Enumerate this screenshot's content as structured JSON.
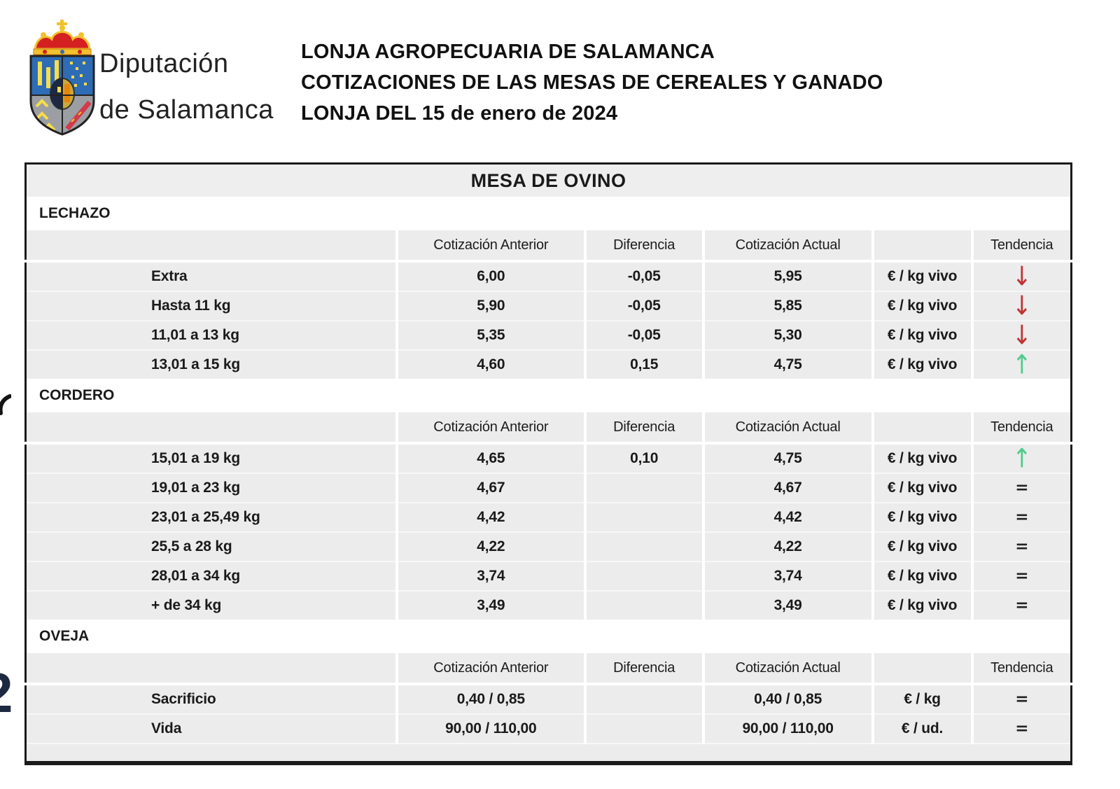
{
  "header": {
    "logo": {
      "name": "diputacion-de-salamanca-coat-of-arms",
      "org_line1": "Diputación",
      "org_line2": "de Salamanca",
      "colors": {
        "blue": "#2e6cb5",
        "gray": "#9b9fa3",
        "red": "#d42020",
        "gold": "#f2c12e"
      }
    },
    "title_lines": [
      "LONJA AGROPECUARIA DE SALAMANCA",
      "COTIZACIONES DE LAS MESAS DE CEREALES Y GANADO",
      "LONJA DEL 15 de enero de 2024"
    ]
  },
  "artifacts": {
    "clipped_left_edge_digit": "2"
  },
  "table": {
    "title": "MESA DE OVINO",
    "columns": [
      "",
      "Cotización Anterior",
      "Diferencia",
      "Cotización Actual",
      "",
      "Tendencia"
    ],
    "trend_symbols": {
      "down": "↓",
      "up": "↑",
      "equal": "="
    },
    "colors": {
      "trend_down": "#c03232",
      "trend_up": "#4ecb8d",
      "trend_equal": "#222222",
      "row_bg": "#ececec",
      "section_bg": "#ffffff",
      "border": "#1a1a1a"
    },
    "sections": [
      {
        "name": "LECHAZO",
        "rows": [
          {
            "label": "Extra",
            "anterior": "6,00",
            "diferencia": "-0,05",
            "actual": "5,95",
            "unit": "€ / kg vivo",
            "trend": "down"
          },
          {
            "label": "Hasta 11 kg",
            "anterior": "5,90",
            "diferencia": "-0,05",
            "actual": "5,85",
            "unit": "€ / kg vivo",
            "trend": "down"
          },
          {
            "label": "11,01 a 13 kg",
            "anterior": "5,35",
            "diferencia": "-0,05",
            "actual": "5,30",
            "unit": "€ / kg vivo",
            "trend": "down"
          },
          {
            "label": "13,01 a 15 kg",
            "anterior": "4,60",
            "diferencia": "0,15",
            "actual": "4,75",
            "unit": "€ / kg vivo",
            "trend": "up"
          }
        ]
      },
      {
        "name": "CORDERO",
        "rows": [
          {
            "label": "15,01 a 19 kg",
            "anterior": "4,65",
            "diferencia": "0,10",
            "actual": "4,75",
            "unit": "€ / kg vivo",
            "trend": "up"
          },
          {
            "label": "19,01 a 23 kg",
            "anterior": "4,67",
            "diferencia": "",
            "actual": "4,67",
            "unit": "€ / kg vivo",
            "trend": "equal"
          },
          {
            "label": "23,01 a 25,49 kg",
            "anterior": "4,42",
            "diferencia": "",
            "actual": "4,42",
            "unit": "€ / kg vivo",
            "trend": "equal"
          },
          {
            "label": "25,5 a 28 kg",
            "anterior": "4,22",
            "diferencia": "",
            "actual": "4,22",
            "unit": "€ / kg vivo",
            "trend": "equal"
          },
          {
            "label": "28,01 a 34 kg",
            "anterior": "3,74",
            "diferencia": "",
            "actual": "3,74",
            "unit": "€ / kg vivo",
            "trend": "equal"
          },
          {
            "label": "+ de 34 kg",
            "anterior": "3,49",
            "diferencia": "",
            "actual": "3,49",
            "unit": "€ / kg vivo",
            "trend": "equal"
          }
        ]
      },
      {
        "name": "OVEJA",
        "rows": [
          {
            "label": "Sacrificio",
            "anterior": "0,40 / 0,85",
            "diferencia": "",
            "actual": "0,40 / 0,85",
            "unit": "€ / kg",
            "trend": "equal"
          },
          {
            "label": "Vida",
            "anterior": "90,00 / 110,00",
            "diferencia": "",
            "actual": "90,00 / 110,00",
            "unit": "€ / ud.",
            "trend": "equal"
          }
        ]
      }
    ]
  }
}
